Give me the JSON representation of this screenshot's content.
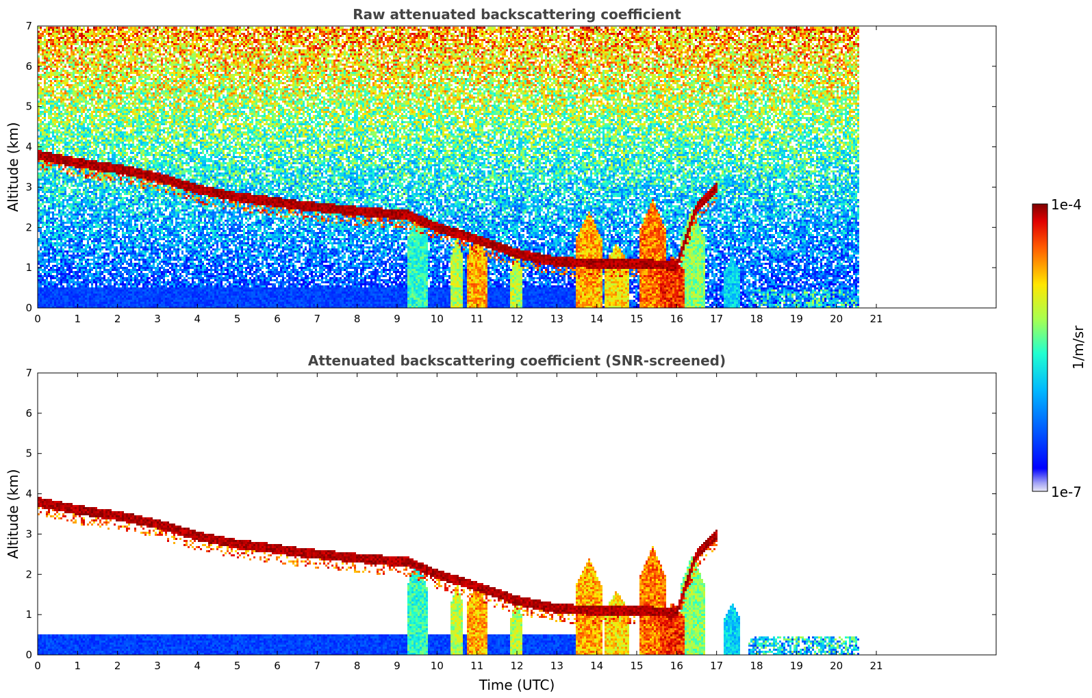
{
  "chart_data": [
    {
      "type": "heatmap",
      "title": "Raw attenuated backscattering coefficient",
      "xlabel": "",
      "ylabel": "Altitude (km)",
      "xlim": [
        0,
        24
      ],
      "ylim": [
        0,
        7
      ],
      "x_ticks": [
        "0",
        "1",
        "2",
        "3",
        "4",
        "5",
        "6",
        "7",
        "8",
        "9",
        "10",
        "11",
        "12",
        "13",
        "14",
        "15",
        "16",
        "17",
        "18",
        "19",
        "20",
        "21"
      ],
      "y_ticks": [
        "0",
        "1",
        "2",
        "3",
        "4",
        "5",
        "6",
        "7"
      ],
      "data_end_time": 20.6,
      "screened": false,
      "cloud_layer": {
        "description_points": [
          [
            0.0,
            3.8
          ],
          [
            1.0,
            3.6
          ],
          [
            2.0,
            3.45
          ],
          [
            3.0,
            3.25
          ],
          [
            4.0,
            2.95
          ],
          [
            5.0,
            2.75
          ],
          [
            6.2,
            2.6
          ],
          [
            6.5,
            2.55
          ],
          [
            8.0,
            2.4
          ],
          [
            9.3,
            2.3
          ],
          [
            10.0,
            2.0
          ],
          [
            11.0,
            1.7
          ],
          [
            12.0,
            1.35
          ],
          [
            13.0,
            1.15
          ],
          [
            14.0,
            1.1
          ],
          [
            15.0,
            1.1
          ],
          [
            16.0,
            1.05
          ],
          [
            16.5,
            2.5
          ],
          [
            17.0,
            3.0
          ]
        ]
      }
    },
    {
      "type": "heatmap",
      "title": "Attenuated backscattering coefficient (SNR-screened)",
      "xlabel": "Time (UTC)",
      "ylabel": "Altitude (km)",
      "xlim": [
        0,
        24
      ],
      "ylim": [
        0,
        7
      ],
      "x_ticks": [
        "0",
        "1",
        "2",
        "3",
        "4",
        "5",
        "6",
        "7",
        "8",
        "9",
        "10",
        "11",
        "12",
        "13",
        "14",
        "15",
        "16",
        "17",
        "18",
        "19",
        "20",
        "21"
      ],
      "y_ticks": [
        "0",
        "1",
        "2",
        "3",
        "4",
        "5",
        "6",
        "7"
      ],
      "data_end_time": 20.6,
      "screened": true
    }
  ],
  "colorbar": {
    "label": "1/m/sr",
    "max_label": "1e-4",
    "min_label": "1e-7",
    "scale": "log",
    "colormap": "jet",
    "range": [
      1e-07,
      0.0001
    ]
  },
  "colors": {
    "title": "#444444",
    "low": "#0000ff",
    "high": "#7f0000"
  }
}
